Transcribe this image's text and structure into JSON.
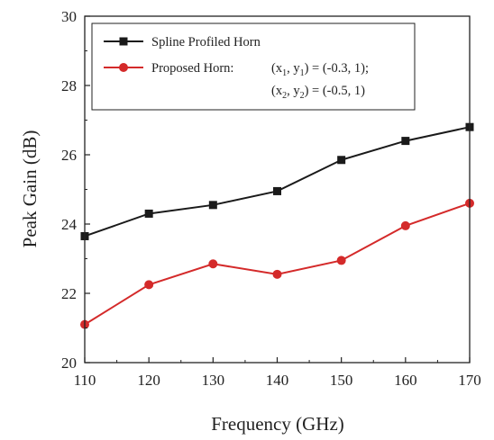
{
  "chart_data": {
    "type": "line",
    "xlabel": "Frequency (GHz)",
    "ylabel": "Peak Gain (dB)",
    "xlim": [
      110,
      170
    ],
    "ylim": [
      20,
      30
    ],
    "xticks": [
      110,
      120,
      130,
      140,
      150,
      160,
      170
    ],
    "yticks": [
      20,
      22,
      24,
      26,
      28,
      30
    ],
    "x": [
      110,
      120,
      130,
      140,
      150,
      160,
      170
    ],
    "grid": false,
    "legend_position": "top-left",
    "series": [
      {
        "name": "Spline Profiled Horn",
        "color": "#1a1a1a",
        "marker": "square",
        "values": [
          23.65,
          24.3,
          24.55,
          24.95,
          25.85,
          26.4,
          26.8
        ]
      },
      {
        "name": "Proposed Horn:",
        "color": "#d42a2a",
        "marker": "circle",
        "values": [
          21.1,
          22.25,
          22.85,
          22.55,
          22.95,
          23.95,
          24.6
        ]
      }
    ],
    "legend_annotation": {
      "line1": {
        "lp": "(x",
        "s1": "1",
        "mid": ", y",
        "s2": "1",
        "rest": ") = (-0.3, 1);"
      },
      "line2": {
        "lp": "(x",
        "s1": "2",
        "mid": ", y",
        "s2": "2",
        "rest": ") = (-0.5, 1)"
      }
    }
  }
}
